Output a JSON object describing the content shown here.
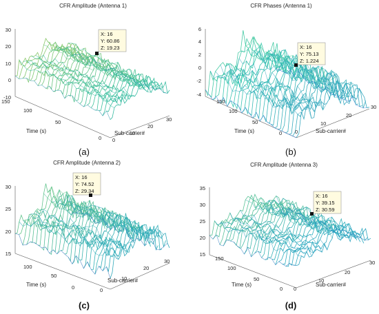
{
  "chart_data": [
    {
      "type": "surface",
      "panel_label": "(a)",
      "title": "CFR Amplitude (Antenna 1)",
      "xlabel": "Sub-carrier#",
      "ylabel": "Time (s)",
      "xlim": [
        0,
        30
      ],
      "ylim": [
        0,
        150
      ],
      "zlim": [
        -10,
        30
      ],
      "xticks": [
        "0",
        "10",
        "20",
        "30"
      ],
      "yticks": [
        "0",
        "50",
        "100",
        "150"
      ],
      "zticks": [
        "-10",
        "0",
        "10",
        "20",
        "30"
      ],
      "colors": {
        "low": "#3049c8",
        "mid": "#38c0a0",
        "high": "#f0d020"
      },
      "datatip": {
        "x": "16",
        "y": "60.86",
        "z": "19.23"
      },
      "datatip_text": [
        "X: 16",
        "Y: 60.86",
        "Z: 19.23"
      ],
      "base_level": 9,
      "peak_level": 19
    },
    {
      "type": "surface",
      "panel_label": "(b)",
      "title": "CFR Phases (Antenna 1)",
      "xlabel": "Sub-carrier#",
      "ylabel": "Time (s)",
      "xlim": [
        0,
        30
      ],
      "ylim": [
        0,
        150
      ],
      "zlim": [
        -4,
        6
      ],
      "xticks": [
        "0",
        "10",
        "20",
        "30"
      ],
      "yticks": [
        "0",
        "50",
        "100",
        "150"
      ],
      "zticks": [
        "-4",
        "-2",
        "0",
        "2",
        "4",
        "6"
      ],
      "colors": {
        "low": "#3a78d8",
        "mid": "#38c8b0",
        "high": "#c8e030"
      },
      "datatip": {
        "x": "16",
        "y": "75.13",
        "z": "1.224"
      },
      "datatip_text": [
        "X: 16",
        "Y: 75.13",
        "Z: 1.224"
      ],
      "base_level": -1,
      "peak_level": 4
    },
    {
      "type": "surface",
      "panel_label": "(c)",
      "title": "CFR Amplitude (Antenna 2)",
      "xlabel": "Sub-carrier#",
      "ylabel": "Time (s)",
      "xlim": [
        0,
        30
      ],
      "ylim": [
        0,
        150
      ],
      "zlim": [
        15,
        30
      ],
      "xticks": [
        "0",
        "10",
        "20",
        "30"
      ],
      "yticks": [
        "0",
        "50",
        "100"
      ],
      "zticks": [
        "15",
        "20",
        "25",
        "30"
      ],
      "colors": {
        "low": "#3040c0",
        "mid": "#30b0b8",
        "high": "#a8e050"
      },
      "datatip": {
        "x": "16",
        "y": "74.52",
        "z": "29.34"
      },
      "datatip_text": [
        "X: 16",
        "Y: 74.52",
        "Z: 29.34"
      ],
      "base_level": 22,
      "peak_level": 28
    },
    {
      "type": "surface",
      "panel_label": "(d)",
      "title": "CFR Amplitude (Antenna 3)",
      "xlabel": "Sub-carrier#",
      "ylabel": "Time (s)",
      "xlim": [
        0,
        30
      ],
      "ylim": [
        0,
        150
      ],
      "zlim": [
        15,
        35
      ],
      "xticks": [
        "0",
        "10",
        "20",
        "30"
      ],
      "yticks": [
        "0",
        "50",
        "100",
        "150"
      ],
      "zticks": [
        "15",
        "20",
        "25",
        "30",
        "35"
      ],
      "colors": {
        "low": "#2c3cc0",
        "mid": "#2fb0c0",
        "high": "#a0e050"
      },
      "datatip": {
        "x": "16",
        "y": "39.15",
        "z": "30.59"
      },
      "datatip_text": [
        "X: 16",
        "Y: 39.15",
        "Z: 30.59"
      ],
      "base_level": 24,
      "peak_level": 30
    }
  ]
}
